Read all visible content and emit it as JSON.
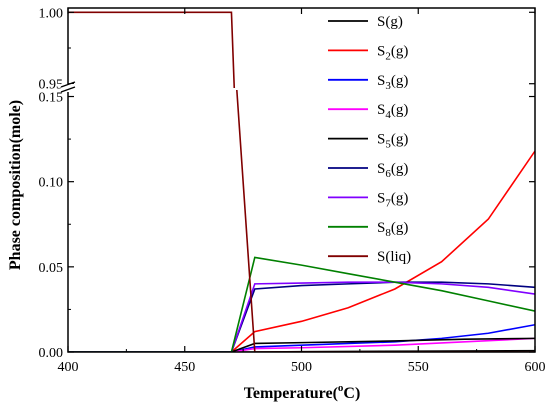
{
  "chart_data": {
    "type": "line",
    "xlabel": "Temperature(°C)",
    "ylabel": "Phase composition(mole)",
    "xlim": [
      400,
      600
    ],
    "x_ticks": [
      "400",
      "450",
      "500",
      "550",
      "600"
    ],
    "y_ticks_lower": [
      "0.00",
      "0.05",
      "0.10",
      "0.15"
    ],
    "y_ticks_upper": [
      "0.95",
      "1.00"
    ],
    "ylim_lower": [
      0,
      0.155
    ],
    "ylim_upper": [
      0.947,
      1.003
    ],
    "axis_break_y": true,
    "legend_position": "right",
    "grid": false,
    "series": [
      {
        "name": "S(g)",
        "label_base": "S",
        "label_sub": "",
        "label_tail": "(g)",
        "color": "#000000",
        "points": [
          [
            400,
            0
          ],
          [
            470,
            0
          ],
          [
            480,
            0
          ],
          [
            500,
            0.0002
          ],
          [
            550,
            0.0005
          ],
          [
            600,
            0.0008
          ]
        ]
      },
      {
        "name": "S2(g)",
        "label_base": "S",
        "label_sub": "2",
        "label_tail": "(g)",
        "color": "#ff0000",
        "points": [
          [
            400,
            0
          ],
          [
            470,
            0
          ],
          [
            480,
            0.012
          ],
          [
            500,
            0.018
          ],
          [
            520,
            0.026
          ],
          [
            540,
            0.037
          ],
          [
            560,
            0.053
          ],
          [
            580,
            0.078
          ],
          [
            600,
            0.118
          ]
        ]
      },
      {
        "name": "S3(g)",
        "label_base": "S",
        "label_sub": "3",
        "label_tail": "(g)",
        "color": "#0000ff",
        "points": [
          [
            400,
            0
          ],
          [
            470,
            0
          ],
          [
            480,
            0.003
          ],
          [
            500,
            0.004
          ],
          [
            520,
            0.005
          ],
          [
            540,
            0.006
          ],
          [
            560,
            0.008
          ],
          [
            580,
            0.011
          ],
          [
            600,
            0.016
          ]
        ]
      },
      {
        "name": "S4(g)",
        "label_base": "S",
        "label_sub": "4",
        "label_tail": "(g)",
        "color": "#ff00ff",
        "points": [
          [
            400,
            0
          ],
          [
            470,
            0
          ],
          [
            480,
            0.002
          ],
          [
            500,
            0.0025
          ],
          [
            540,
            0.004
          ],
          [
            570,
            0.006
          ],
          [
            600,
            0.008
          ]
        ]
      },
      {
        "name": "S5(g)",
        "label_base": "S",
        "label_sub": "5",
        "label_tail": "(g)",
        "color": "#000000",
        "points": [
          [
            400,
            0
          ],
          [
            470,
            0
          ],
          [
            480,
            0.005
          ],
          [
            500,
            0.0055
          ],
          [
            540,
            0.0065
          ],
          [
            570,
            0.0075
          ],
          [
            600,
            0.008
          ]
        ]
      },
      {
        "name": "S6(g)",
        "label_base": "S",
        "label_sub": "6",
        "label_tail": "(g)",
        "color": "#000080",
        "points": [
          [
            400,
            0
          ],
          [
            470,
            0
          ],
          [
            480,
            0.037
          ],
          [
            500,
            0.039
          ],
          [
            520,
            0.04
          ],
          [
            540,
            0.041
          ],
          [
            560,
            0.041
          ],
          [
            580,
            0.04
          ],
          [
            600,
            0.038
          ]
        ]
      },
      {
        "name": "S7(g)",
        "label_base": "S",
        "label_sub": "7",
        "label_tail": "(g)",
        "color": "#8000ff",
        "points": [
          [
            400,
            0
          ],
          [
            470,
            0
          ],
          [
            480,
            0.04
          ],
          [
            500,
            0.0405
          ],
          [
            520,
            0.041
          ],
          [
            540,
            0.041
          ],
          [
            560,
            0.04
          ],
          [
            580,
            0.038
          ],
          [
            600,
            0.034
          ]
        ]
      },
      {
        "name": "S8(g)",
        "label_base": "S",
        "label_sub": "8",
        "label_tail": "(g)",
        "color": "#008000",
        "points": [
          [
            400,
            0
          ],
          [
            470,
            0
          ],
          [
            480,
            0.0555
          ],
          [
            500,
            0.051
          ],
          [
            520,
            0.046
          ],
          [
            540,
            0.041
          ],
          [
            560,
            0.036
          ],
          [
            580,
            0.03
          ],
          [
            600,
            0.024
          ]
        ]
      },
      {
        "name": "S(liq)",
        "label_base": "S",
        "label_sub": "",
        "label_tail": "(liq)",
        "color": "#800000",
        "points": [
          [
            400,
            1.0
          ],
          [
            470,
            1.0
          ],
          [
            480,
            0
          ],
          [
            600,
            0
          ]
        ]
      }
    ]
  }
}
